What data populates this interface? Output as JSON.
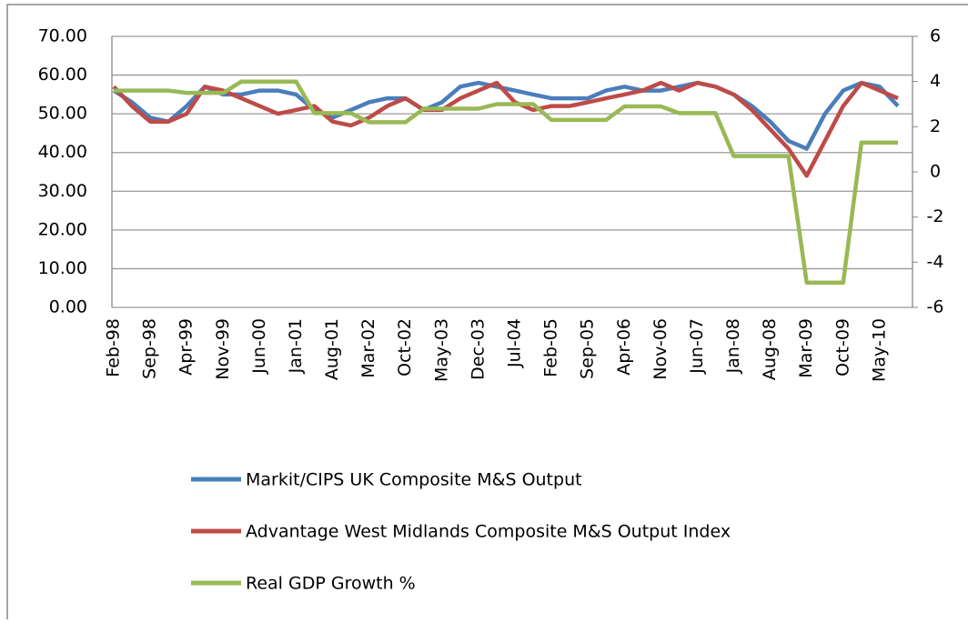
{
  "chart_data": {
    "type": "line",
    "categories": [
      "Feb-98",
      null,
      "Sep-98",
      null,
      "Apr-99",
      null,
      "Nov-99",
      null,
      "Jun-00",
      null,
      "Jan-01",
      null,
      "Aug-01",
      null,
      "Mar-02",
      null,
      "Oct-02",
      null,
      "May-03",
      null,
      "Dec-03",
      null,
      "Jul-04",
      null,
      "Feb-05",
      null,
      "Sep-05",
      null,
      "Apr-06",
      null,
      "Nov-06",
      null,
      "Jun-07",
      null,
      "Jan-08",
      null,
      "Aug-08",
      null,
      "Mar-09",
      null,
      "Oct-09",
      null,
      "May-10",
      null
    ],
    "series": [
      {
        "name": "Markit/CIPS UK Composite M&S Output",
        "color": "#4a7ebb",
        "values": [
          56,
          53,
          49,
          48,
          52,
          57,
          55,
          55,
          56,
          56,
          55,
          51,
          49,
          51,
          53,
          54,
          54,
          51,
          53,
          57,
          58,
          57,
          56,
          55,
          54,
          54,
          54,
          56,
          57,
          56,
          56,
          57,
          58,
          57,
          55,
          52,
          48,
          43,
          41,
          50,
          56,
          58,
          57,
          52
        ]
      },
      {
        "name": "Advantage West Midlands Composite M&S Output Index",
        "color": "#be4b48",
        "values": [
          57,
          52,
          48,
          48,
          50,
          57,
          56,
          54,
          52,
          50,
          51,
          52,
          48,
          47,
          49,
          52,
          54,
          51,
          51,
          54,
          56,
          58,
          53,
          51,
          52,
          52,
          53,
          54,
          55,
          56,
          58,
          56,
          58,
          57,
          55,
          51,
          46,
          41,
          34,
          43,
          52,
          58,
          56,
          54
        ]
      },
      {
        "name": "Real GDP Growth %",
        "color": "#98b954",
        "axis": "y2",
        "values": [
          3.6,
          3.6,
          3.6,
          3.6,
          3.5,
          3.5,
          3.5,
          4.0,
          4.0,
          4.0,
          4.0,
          2.6,
          2.6,
          2.6,
          2.2,
          2.2,
          2.2,
          2.8,
          2.8,
          2.8,
          2.8,
          3.0,
          3.0,
          3.0,
          2.3,
          2.3,
          2.3,
          2.3,
          2.9,
          2.9,
          2.9,
          2.6,
          2.6,
          2.6,
          0.7,
          0.7,
          0.7,
          0.7,
          -4.9,
          -4.9,
          -4.9,
          1.3,
          1.3,
          1.3
        ]
      }
    ],
    "ylim": [
      0,
      70
    ],
    "yticks": [
      {
        "value": 0,
        "label": "0.00"
      },
      {
        "value": 10,
        "label": "10.00"
      },
      {
        "value": 20,
        "label": "20.00"
      },
      {
        "value": 30,
        "label": "30.00"
      },
      {
        "value": 40,
        "label": "40.00"
      },
      {
        "value": 50,
        "label": "50.00"
      },
      {
        "value": 60,
        "label": "60.00"
      },
      {
        "value": 70,
        "label": "70.00"
      }
    ],
    "y2lim": [
      -6,
      6
    ],
    "y2ticks": [
      -6,
      -4,
      -2,
      0,
      2,
      4,
      6
    ],
    "grid": true,
    "legend": "bottom"
  }
}
